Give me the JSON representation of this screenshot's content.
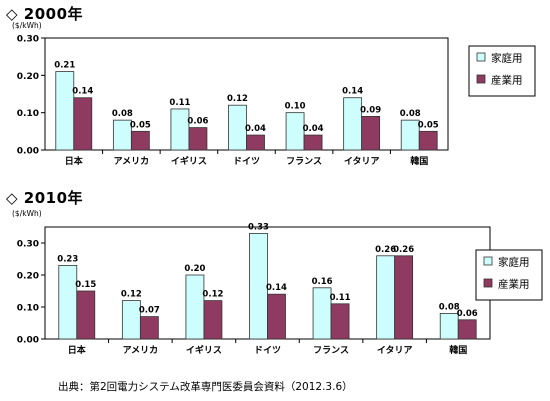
{
  "legend": {
    "household": "家庭用",
    "industrial": "産業用"
  },
  "colors": {
    "household": "#cdfdfd",
    "industrial": "#8e3a61",
    "edge": "#333333"
  },
  "source": "出典：第2回電力システム改革専門医委員会資料（2012.3.6）",
  "chart_data": [
    {
      "type": "bar",
      "title": "◇ 2000年",
      "ylabel": "($/kWh)",
      "ylim": [
        0,
        0.3
      ],
      "yticks": [
        "0.00",
        "0.10",
        "0.20",
        "0.30"
      ],
      "categories": [
        "日本",
        "アメリカ",
        "イギリス",
        "ドイツ",
        "フランス",
        "イタリア",
        "韓国"
      ],
      "series": [
        {
          "name": "家庭用",
          "values": [
            0.21,
            0.08,
            0.11,
            0.12,
            0.1,
            0.14,
            0.08
          ],
          "labels": [
            "0.21",
            "0.08",
            "0.11",
            "0.12",
            "0.10",
            "0.14",
            "0.08"
          ]
        },
        {
          "name": "産業用",
          "values": [
            0.14,
            0.05,
            0.06,
            0.04,
            0.04,
            0.09,
            0.05
          ],
          "labels": [
            "0.14",
            "0.05",
            "0.06",
            "0.04",
            "0.04",
            "0.09",
            "0.05"
          ]
        }
      ],
      "legend_position": "right",
      "grid": false
    },
    {
      "type": "bar",
      "title": "◇ 2010年",
      "ylabel": "($/kWh)",
      "ylim": [
        0,
        0.35
      ],
      "yticks": [
        "0.00",
        "0.10",
        "0.20",
        "0.30"
      ],
      "categories": [
        "日本",
        "アメリカ",
        "イギリス",
        "ドイツ",
        "フランス",
        "イタリア",
        "韓国"
      ],
      "series": [
        {
          "name": "家庭用",
          "values": [
            0.23,
            0.12,
            0.2,
            0.33,
            0.16,
            0.26,
            0.08
          ],
          "labels": [
            "0.23",
            "0.12",
            "0.20",
            "0.33",
            "0.16",
            "0.26",
            "0.08"
          ]
        },
        {
          "name": "産業用",
          "values": [
            0.15,
            0.07,
            0.12,
            0.14,
            0.11,
            0.26,
            0.06
          ],
          "labels": [
            "0.15",
            "0.07",
            "0.12",
            "0.14",
            "0.11",
            "0.26",
            "0.06"
          ]
        }
      ],
      "legend_position": "right",
      "grid": false
    }
  ]
}
